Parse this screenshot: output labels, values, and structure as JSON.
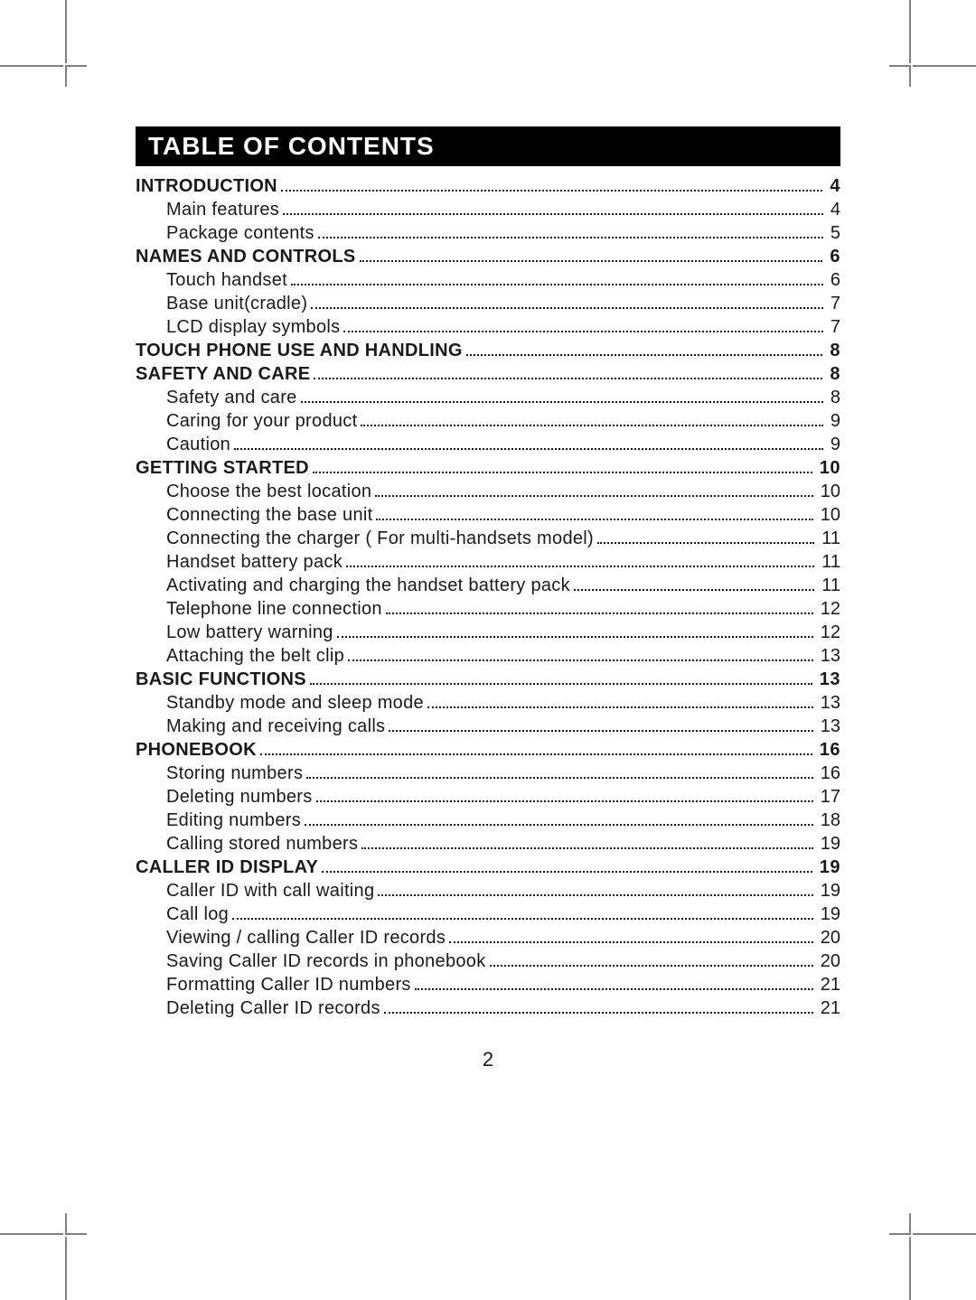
{
  "colors": {
    "title_bg": "#000000",
    "title_fg": "#ffffff",
    "text": "#1a1a1a",
    "crop": "#808080",
    "page_bg": "#ffffff"
  },
  "typography": {
    "title_fontsize_pt": 21,
    "body_fontsize_pt": 15,
    "font_family": "Arial"
  },
  "title": "TABLE OF CONTENTS",
  "page_number": "2",
  "toc": [
    {
      "type": "section",
      "label": "INTRODUCTION",
      "page": "4"
    },
    {
      "type": "sub",
      "label": "Main features",
      "page": "4"
    },
    {
      "type": "sub",
      "label": "Package contents",
      "page": "5"
    },
    {
      "type": "section",
      "label": "NAMES AND CONTROLS",
      "page": "6"
    },
    {
      "type": "sub",
      "label": "Touch handset",
      "page": "6"
    },
    {
      "type": "sub",
      "label": "Base unit(cradle)",
      "page": "7"
    },
    {
      "type": "sub",
      "label": "LCD display symbols",
      "page": "7"
    },
    {
      "type": "section",
      "label": "TOUCH PHONE USE AND HANDLING",
      "page": "8"
    },
    {
      "type": "section",
      "label": "SAFETY AND CARE",
      "page": "8"
    },
    {
      "type": "sub",
      "label": "Safety and care",
      "page": "8"
    },
    {
      "type": "sub",
      "label": "Caring for your product",
      "page": "9"
    },
    {
      "type": "sub",
      "label": "Caution",
      "page": "9"
    },
    {
      "type": "section",
      "label": "GETTING STARTED",
      "page": "10"
    },
    {
      "type": "sub",
      "label": "Choose the best location",
      "page": "10"
    },
    {
      "type": "sub",
      "label": "Connecting the base unit",
      "page": "10"
    },
    {
      "type": "sub",
      "label": "Connecting the charger ( For multi-handsets model)",
      "page": "11"
    },
    {
      "type": "sub",
      "label": "Handset battery pack",
      "page": "11"
    },
    {
      "type": "sub",
      "label": "Activating and charging the handset battery pack",
      "page": "11"
    },
    {
      "type": "sub",
      "label": "Telephone line connection",
      "page": "12"
    },
    {
      "type": "sub",
      "label": "Low battery warning",
      "page": "12"
    },
    {
      "type": "sub",
      "label": "Attaching the belt clip",
      "page": "13"
    },
    {
      "type": "section",
      "label": "BASIC FUNCTIONS",
      "page": "13"
    },
    {
      "type": "sub",
      "label": "Standby mode and sleep mode",
      "page": "13"
    },
    {
      "type": "sub",
      "label": "Making and receiving calls",
      "page": "13"
    },
    {
      "type": "section",
      "label": "PHONEBOOK",
      "page": "16"
    },
    {
      "type": "sub",
      "label": "Storing numbers",
      "page": "16"
    },
    {
      "type": "sub",
      "label": "Deleting numbers",
      "page": "17"
    },
    {
      "type": "sub",
      "label": "Editing numbers",
      "page": "18"
    },
    {
      "type": "sub",
      "label": "Calling stored numbers",
      "page": "19"
    },
    {
      "type": "section",
      "label": "CALLER ID DISPLAY",
      "page": "19"
    },
    {
      "type": "sub",
      "label": "Caller ID with call waiting",
      "page": "19"
    },
    {
      "type": "sub",
      "label": "Call log",
      "page": "19"
    },
    {
      "type": "sub",
      "label": "Viewing / calling Caller ID records",
      "page": "20"
    },
    {
      "type": "sub",
      "label": "Saving Caller ID records in phonebook",
      "page": "20"
    },
    {
      "type": "sub",
      "label": "Formatting Caller ID numbers",
      "page": "21"
    },
    {
      "type": "sub",
      "label": "Deleting Caller ID records",
      "page": "21"
    }
  ]
}
